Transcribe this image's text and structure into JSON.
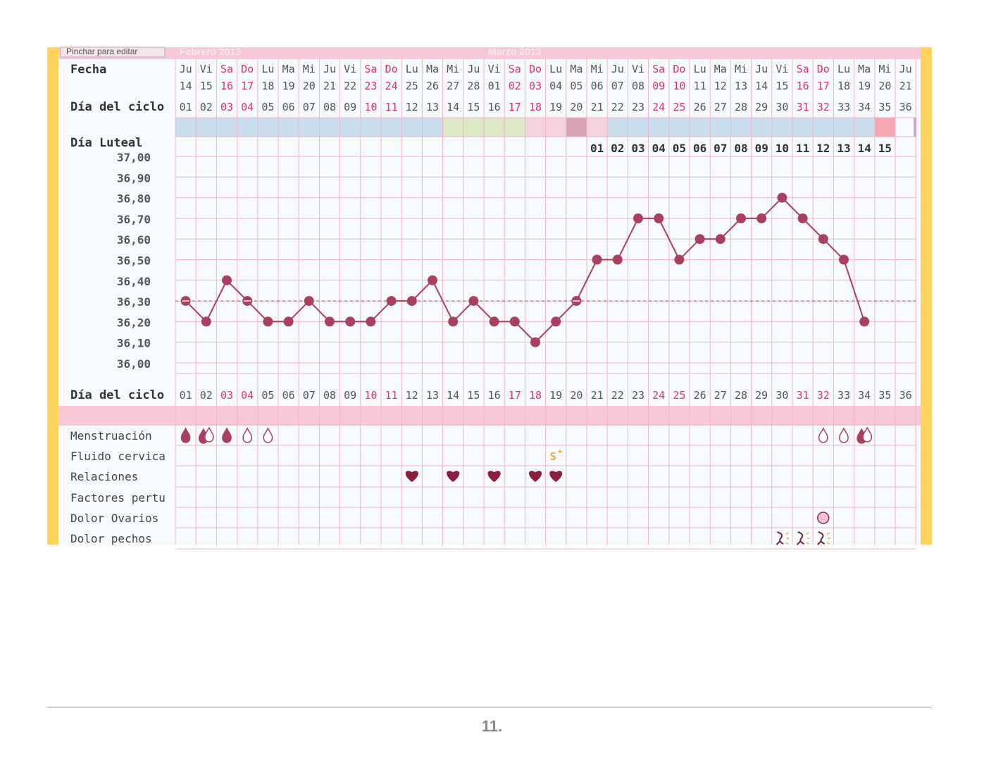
{
  "chart_data": {
    "type": "line",
    "header": {
      "click_hint": "Pinchar para editar",
      "months": [
        {
          "label": "Febrero 2013",
          "start_col": 0
        },
        {
          "label": "Marzo 2013",
          "start_col": 15
        }
      ]
    },
    "row_labels": {
      "fecha": "Fecha",
      "dia_ciclo": "Día del ciclo",
      "dia_luteal": "Día Luteal",
      "menstruacion": "Menstruación",
      "fluido": "Fluido cervica",
      "relaciones": "Relaciones",
      "factores": "Factores pertu",
      "dolor_ovarios": "Dolor Ovarios",
      "dolor_pechos": "Dolor pechos"
    },
    "weekdays": [
      "Ju",
      "Vi",
      "Sa",
      "Do",
      "Lu",
      "Ma",
      "Mi",
      "Ju",
      "Vi",
      "Sa",
      "Do",
      "Lu",
      "Ma",
      "Mi",
      "Ju",
      "Vi",
      "Sa",
      "Do",
      "Lu",
      "Ma",
      "Mi",
      "Ju",
      "Vi",
      "Sa",
      "Do",
      "Lu",
      "Ma",
      "Mi",
      "Ju",
      "Vi",
      "Sa",
      "Do",
      "Lu",
      "Ma",
      "Mi",
      "Ju"
    ],
    "dates": [
      "14",
      "15",
      "16",
      "17",
      "18",
      "19",
      "20",
      "21",
      "22",
      "23",
      "24",
      "25",
      "26",
      "27",
      "28",
      "01",
      "02",
      "03",
      "04",
      "05",
      "06",
      "07",
      "08",
      "09",
      "10",
      "11",
      "12",
      "13",
      "14",
      "15",
      "16",
      "17",
      "18",
      "19",
      "20",
      "21"
    ],
    "cycle_days": [
      "01",
      "02",
      "03",
      "04",
      "05",
      "06",
      "07",
      "08",
      "09",
      "10",
      "11",
      "12",
      "13",
      "14",
      "15",
      "16",
      "17",
      "18",
      "19",
      "20",
      "21",
      "22",
      "23",
      "24",
      "25",
      "26",
      "27",
      "28",
      "29",
      "30",
      "31",
      "32",
      "33",
      "34",
      "35",
      "36"
    ],
    "weekend_cols": [
      2,
      3,
      9,
      10,
      16,
      17,
      23,
      24,
      30,
      31
    ],
    "luteal_days": [
      "01",
      "02",
      "03",
      "04",
      "05",
      "06",
      "07",
      "08",
      "09",
      "10",
      "11",
      "12",
      "13",
      "14",
      "15"
    ],
    "luteal_start_col": 20,
    "y_ticks": [
      "37,00",
      "36,90",
      "36,80",
      "36,70",
      "36,60",
      "36,50",
      "36,40",
      "36,30",
      "36,20",
      "36,10",
      "36,00"
    ],
    "ylim": [
      36.0,
      37.0
    ],
    "coverline": 36.3,
    "temperatures": [
      36.3,
      36.2,
      36.4,
      36.3,
      36.2,
      36.2,
      36.3,
      36.2,
      36.2,
      36.2,
      36.3,
      36.3,
      36.4,
      36.2,
      36.3,
      36.2,
      36.2,
      36.1,
      36.2,
      36.3,
      36.5,
      36.5,
      36.7,
      36.7,
      36.5,
      36.6,
      36.6,
      36.7,
      36.7,
      36.8,
      36.7,
      36.6,
      36.5,
      36.2
    ],
    "phase_colors": [
      "#c9dff0",
      "#c9dff0",
      "#c9dff0",
      "#c9dff0",
      "#c9dff0",
      "#c9dff0",
      "#c9dff0",
      "#c9dff0",
      "#c9dff0",
      "#c9dff0",
      "#c9dff0",
      "#c9dff0",
      "#c9dff0",
      "#dde8c4",
      "#dde8c4",
      "#dde8c4",
      "#dde8c4",
      "#f5d3de",
      "#f5d3de",
      "#d6a4b4",
      "#f5d3de",
      "#c9dff0",
      "#c9dff0",
      "#c9dff0",
      "#c9dff0",
      "#c9dff0",
      "#c9dff0",
      "#c9dff0",
      "#c9dff0",
      "#c9dff0",
      "#c9dff0",
      "#c9dff0",
      "#c9dff0",
      "#c9dff0",
      "#f5a6b0",
      "",
      ""
    ],
    "menstruation": {
      "0": "full",
      "1": "double",
      "2": "full",
      "3": "light",
      "4": "light",
      "31": "light",
      "32": "light",
      "33": "double"
    },
    "fluid": {
      "18": "S+"
    },
    "intercourse": [
      11,
      13,
      15,
      17,
      18
    ],
    "ovary_pain": [
      31
    ],
    "breast_pain": [
      29,
      30,
      31
    ]
  },
  "colors": {
    "accent": "#a9405f",
    "weekend_text": "#e0336c",
    "grid": "#eeb6c6",
    "header_band": "#f7c9d7",
    "side_bar": "#ffd45c",
    "purple_mark": "#c59ad6"
  },
  "footer": {
    "page_number": "11."
  }
}
